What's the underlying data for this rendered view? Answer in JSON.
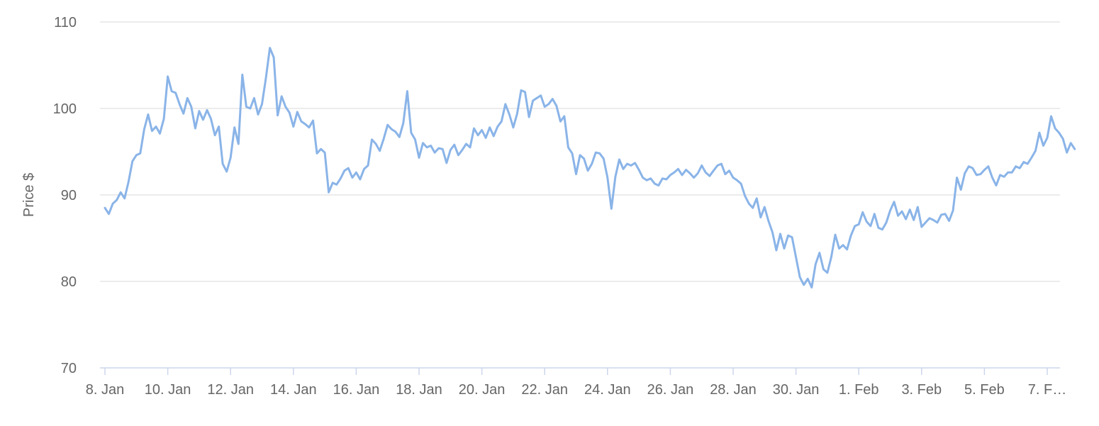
{
  "chart_data": {
    "type": "line",
    "title": "",
    "xlabel": "",
    "ylabel": "Price $",
    "ylim": [
      70,
      110
    ],
    "y_ticks": [
      70,
      80,
      90,
      100,
      110
    ],
    "grid": "horizontal",
    "legend": "none",
    "x_tick_labels": [
      "8. Jan",
      "10. Jan",
      "12. Jan",
      "14. Jan",
      "16. Jan",
      "18. Jan",
      "20. Jan",
      "22. Jan",
      "24. Jan",
      "26. Jan",
      "28. Jan",
      "30. Jan",
      "1. Feb",
      "3. Feb",
      "5. Feb",
      "7. F…"
    ],
    "x_tick_dates": [
      "2017-01-08",
      "2017-01-10",
      "2017-01-12",
      "2017-01-14",
      "2017-01-16",
      "2017-01-18",
      "2017-01-20",
      "2017-01-22",
      "2017-01-24",
      "2017-01-26",
      "2017-01-28",
      "2017-01-30",
      "2017-02-01",
      "2017-02-03",
      "2017-02-05",
      "2017-02-07"
    ],
    "series": [
      {
        "color": "#8ab4e8",
        "points": [
          [
            "2017-01-08T00:00",
            88.5
          ],
          [
            "2017-01-08T03:00",
            87.8
          ],
          [
            "2017-01-08T06:00",
            89.0
          ],
          [
            "2017-01-08T09:00",
            89.4
          ],
          [
            "2017-01-08T12:00",
            90.3
          ],
          [
            "2017-01-08T15:00",
            89.6
          ],
          [
            "2017-01-08T18:00",
            91.5
          ],
          [
            "2017-01-08T21:00",
            93.9
          ],
          [
            "2017-01-09T00:00",
            94.6
          ],
          [
            "2017-01-09T03:00",
            94.8
          ],
          [
            "2017-01-09T06:00",
            97.6
          ],
          [
            "2017-01-09T09:00",
            99.3
          ],
          [
            "2017-01-09T12:00",
            97.4
          ],
          [
            "2017-01-09T15:00",
            97.9
          ],
          [
            "2017-01-09T18:00",
            97.1
          ],
          [
            "2017-01-09T21:00",
            98.8
          ],
          [
            "2017-01-10T00:00",
            103.7
          ],
          [
            "2017-01-10T03:00",
            102.0
          ],
          [
            "2017-01-10T06:00",
            101.8
          ],
          [
            "2017-01-10T09:00",
            100.5
          ],
          [
            "2017-01-10T12:00",
            99.4
          ],
          [
            "2017-01-10T15:00",
            101.2
          ],
          [
            "2017-01-10T18:00",
            100.2
          ],
          [
            "2017-01-10T21:00",
            97.7
          ],
          [
            "2017-01-11T00:00",
            99.7
          ],
          [
            "2017-01-11T03:00",
            98.7
          ],
          [
            "2017-01-11T06:00",
            99.8
          ],
          [
            "2017-01-11T09:00",
            98.8
          ],
          [
            "2017-01-11T12:00",
            96.9
          ],
          [
            "2017-01-11T15:00",
            97.9
          ],
          [
            "2017-01-11T18:00",
            93.6
          ],
          [
            "2017-01-11T21:00",
            92.7
          ],
          [
            "2017-01-12T00:00",
            94.3
          ],
          [
            "2017-01-12T03:00",
            97.8
          ],
          [
            "2017-01-12T06:00",
            95.9
          ],
          [
            "2017-01-12T09:00",
            103.9
          ],
          [
            "2017-01-12T12:00",
            100.2
          ],
          [
            "2017-01-12T15:00",
            100.0
          ],
          [
            "2017-01-12T18:00",
            101.2
          ],
          [
            "2017-01-12T21:00",
            99.3
          ],
          [
            "2017-01-13T00:00",
            100.5
          ],
          [
            "2017-01-13T03:00",
            103.5
          ],
          [
            "2017-01-13T06:00",
            107.0
          ],
          [
            "2017-01-13T09:00",
            105.9
          ],
          [
            "2017-01-13T12:00",
            99.2
          ],
          [
            "2017-01-13T15:00",
            101.4
          ],
          [
            "2017-01-13T18:00",
            100.2
          ],
          [
            "2017-01-13T21:00",
            99.5
          ],
          [
            "2017-01-14T00:00",
            97.9
          ],
          [
            "2017-01-14T03:00",
            99.6
          ],
          [
            "2017-01-14T06:00",
            98.5
          ],
          [
            "2017-01-14T09:00",
            98.2
          ],
          [
            "2017-01-14T12:00",
            97.8
          ],
          [
            "2017-01-14T15:00",
            98.6
          ],
          [
            "2017-01-14T18:00",
            94.8
          ],
          [
            "2017-01-14T21:00",
            95.3
          ],
          [
            "2017-01-15T00:00",
            94.9
          ],
          [
            "2017-01-15T03:00",
            90.3
          ],
          [
            "2017-01-15T06:00",
            91.4
          ],
          [
            "2017-01-15T09:00",
            91.2
          ],
          [
            "2017-01-15T12:00",
            91.9
          ],
          [
            "2017-01-15T15:00",
            92.8
          ],
          [
            "2017-01-15T18:00",
            93.1
          ],
          [
            "2017-01-15T21:00",
            92.0
          ],
          [
            "2017-01-16T00:00",
            92.6
          ],
          [
            "2017-01-16T03:00",
            91.8
          ],
          [
            "2017-01-16T06:00",
            93.0
          ],
          [
            "2017-01-16T09:00",
            93.4
          ],
          [
            "2017-01-16T12:00",
            96.4
          ],
          [
            "2017-01-16T15:00",
            95.9
          ],
          [
            "2017-01-16T18:00",
            95.1
          ],
          [
            "2017-01-16T21:00",
            96.5
          ],
          [
            "2017-01-17T00:00",
            98.1
          ],
          [
            "2017-01-17T03:00",
            97.6
          ],
          [
            "2017-01-17T06:00",
            97.3
          ],
          [
            "2017-01-17T09:00",
            96.7
          ],
          [
            "2017-01-17T12:00",
            98.3
          ],
          [
            "2017-01-17T15:00",
            102.0
          ],
          [
            "2017-01-17T18:00",
            97.2
          ],
          [
            "2017-01-17T21:00",
            96.4
          ],
          [
            "2017-01-18T00:00",
            94.3
          ],
          [
            "2017-01-18T03:00",
            96.0
          ],
          [
            "2017-01-18T06:00",
            95.5
          ],
          [
            "2017-01-18T09:00",
            95.7
          ],
          [
            "2017-01-18T12:00",
            94.9
          ],
          [
            "2017-01-18T15:00",
            95.4
          ],
          [
            "2017-01-18T18:00",
            95.3
          ],
          [
            "2017-01-18T21:00",
            93.7
          ],
          [
            "2017-01-19T00:00",
            95.2
          ],
          [
            "2017-01-19T03:00",
            95.8
          ],
          [
            "2017-01-19T06:00",
            94.6
          ],
          [
            "2017-01-19T09:00",
            95.2
          ],
          [
            "2017-01-19T12:00",
            95.9
          ],
          [
            "2017-01-19T15:00",
            95.5
          ],
          [
            "2017-01-19T18:00",
            97.7
          ],
          [
            "2017-01-19T21:00",
            96.9
          ],
          [
            "2017-01-20T00:00",
            97.5
          ],
          [
            "2017-01-20T03:00",
            96.6
          ],
          [
            "2017-01-20T06:00",
            97.8
          ],
          [
            "2017-01-20T09:00",
            96.8
          ],
          [
            "2017-01-20T12:00",
            97.9
          ],
          [
            "2017-01-20T15:00",
            98.5
          ],
          [
            "2017-01-20T18:00",
            100.5
          ],
          [
            "2017-01-20T21:00",
            99.3
          ],
          [
            "2017-01-21T00:00",
            97.8
          ],
          [
            "2017-01-21T03:00",
            99.4
          ],
          [
            "2017-01-21T06:00",
            102.1
          ],
          [
            "2017-01-21T09:00",
            101.9
          ],
          [
            "2017-01-21T12:00",
            99.0
          ],
          [
            "2017-01-21T15:00",
            100.9
          ],
          [
            "2017-01-21T18:00",
            101.2
          ],
          [
            "2017-01-21T21:00",
            101.5
          ],
          [
            "2017-01-22T00:00",
            100.2
          ],
          [
            "2017-01-22T03:00",
            100.5
          ],
          [
            "2017-01-22T06:00",
            101.1
          ],
          [
            "2017-01-22T09:00",
            100.3
          ],
          [
            "2017-01-22T12:00",
            98.5
          ],
          [
            "2017-01-22T15:00",
            99.1
          ],
          [
            "2017-01-22T18:00",
            95.5
          ],
          [
            "2017-01-22T21:00",
            94.8
          ],
          [
            "2017-01-23T00:00",
            92.4
          ],
          [
            "2017-01-23T03:00",
            94.6
          ],
          [
            "2017-01-23T06:00",
            94.2
          ],
          [
            "2017-01-23T09:00",
            92.8
          ],
          [
            "2017-01-23T12:00",
            93.6
          ],
          [
            "2017-01-23T15:00",
            94.9
          ],
          [
            "2017-01-23T18:00",
            94.8
          ],
          [
            "2017-01-23T21:00",
            94.2
          ],
          [
            "2017-01-24T00:00",
            92.0
          ],
          [
            "2017-01-24T03:00",
            88.4
          ],
          [
            "2017-01-24T06:00",
            92.1
          ],
          [
            "2017-01-24T09:00",
            94.1
          ],
          [
            "2017-01-24T12:00",
            93.0
          ],
          [
            "2017-01-24T15:00",
            93.6
          ],
          [
            "2017-01-24T18:00",
            93.4
          ],
          [
            "2017-01-24T21:00",
            93.7
          ],
          [
            "2017-01-25T00:00",
            92.9
          ],
          [
            "2017-01-25T03:00",
            92.0
          ],
          [
            "2017-01-25T06:00",
            91.7
          ],
          [
            "2017-01-25T09:00",
            91.9
          ],
          [
            "2017-01-25T12:00",
            91.3
          ],
          [
            "2017-01-25T15:00",
            91.1
          ],
          [
            "2017-01-25T18:00",
            91.9
          ],
          [
            "2017-01-25T21:00",
            91.8
          ],
          [
            "2017-01-26T00:00",
            92.3
          ],
          [
            "2017-01-26T03:00",
            92.6
          ],
          [
            "2017-01-26T06:00",
            93.0
          ],
          [
            "2017-01-26T09:00",
            92.3
          ],
          [
            "2017-01-26T12:00",
            92.9
          ],
          [
            "2017-01-26T15:00",
            92.5
          ],
          [
            "2017-01-26T18:00",
            92.0
          ],
          [
            "2017-01-26T21:00",
            92.5
          ],
          [
            "2017-01-27T00:00",
            93.4
          ],
          [
            "2017-01-27T03:00",
            92.6
          ],
          [
            "2017-01-27T06:00",
            92.2
          ],
          [
            "2017-01-27T09:00",
            92.8
          ],
          [
            "2017-01-27T12:00",
            93.4
          ],
          [
            "2017-01-27T15:00",
            93.6
          ],
          [
            "2017-01-27T18:00",
            92.4
          ],
          [
            "2017-01-27T21:00",
            92.8
          ],
          [
            "2017-01-28T00:00",
            92.0
          ],
          [
            "2017-01-28T03:00",
            91.7
          ],
          [
            "2017-01-28T06:00",
            91.3
          ],
          [
            "2017-01-28T09:00",
            89.9
          ],
          [
            "2017-01-28T12:00",
            89.0
          ],
          [
            "2017-01-28T15:00",
            88.5
          ],
          [
            "2017-01-28T18:00",
            89.6
          ],
          [
            "2017-01-28T21:00",
            87.4
          ],
          [
            "2017-01-29T00:00",
            88.6
          ],
          [
            "2017-01-29T03:00",
            87.0
          ],
          [
            "2017-01-29T06:00",
            85.7
          ],
          [
            "2017-01-29T09:00",
            83.6
          ],
          [
            "2017-01-29T12:00",
            85.5
          ],
          [
            "2017-01-29T15:00",
            83.8
          ],
          [
            "2017-01-29T18:00",
            85.3
          ],
          [
            "2017-01-29T21:00",
            85.1
          ],
          [
            "2017-01-30T00:00",
            82.8
          ],
          [
            "2017-01-30T03:00",
            80.5
          ],
          [
            "2017-01-30T06:00",
            79.6
          ],
          [
            "2017-01-30T09:00",
            80.3
          ],
          [
            "2017-01-30T12:00",
            79.3
          ],
          [
            "2017-01-30T15:00",
            82.0
          ],
          [
            "2017-01-30T18:00",
            83.3
          ],
          [
            "2017-01-30T21:00",
            81.4
          ],
          [
            "2017-01-31T00:00",
            81.0
          ],
          [
            "2017-01-31T03:00",
            82.8
          ],
          [
            "2017-01-31T06:00",
            85.4
          ],
          [
            "2017-01-31T09:00",
            83.8
          ],
          [
            "2017-01-31T12:00",
            84.2
          ],
          [
            "2017-01-31T15:00",
            83.7
          ],
          [
            "2017-01-31T18:00",
            85.3
          ],
          [
            "2017-01-31T21:00",
            86.4
          ],
          [
            "2017-02-01T00:00",
            86.6
          ],
          [
            "2017-02-01T03:00",
            88.0
          ],
          [
            "2017-02-01T06:00",
            86.9
          ],
          [
            "2017-02-01T09:00",
            86.4
          ],
          [
            "2017-02-01T12:00",
            87.8
          ],
          [
            "2017-02-01T15:00",
            86.2
          ],
          [
            "2017-02-01T18:00",
            86.0
          ],
          [
            "2017-02-01T21:00",
            86.8
          ],
          [
            "2017-02-02T00:00",
            88.2
          ],
          [
            "2017-02-02T03:00",
            89.2
          ],
          [
            "2017-02-02T06:00",
            87.6
          ],
          [
            "2017-02-02T09:00",
            88.1
          ],
          [
            "2017-02-02T12:00",
            87.2
          ],
          [
            "2017-02-02T15:00",
            88.3
          ],
          [
            "2017-02-02T18:00",
            87.1
          ],
          [
            "2017-02-02T21:00",
            88.6
          ],
          [
            "2017-02-03T00:00",
            86.3
          ],
          [
            "2017-02-03T03:00",
            86.8
          ],
          [
            "2017-02-03T06:00",
            87.3
          ],
          [
            "2017-02-03T09:00",
            87.1
          ],
          [
            "2017-02-03T12:00",
            86.8
          ],
          [
            "2017-02-03T15:00",
            87.7
          ],
          [
            "2017-02-03T18:00",
            87.8
          ],
          [
            "2017-02-03T21:00",
            87.0
          ],
          [
            "2017-02-04T00:00",
            88.2
          ],
          [
            "2017-02-04T03:00",
            92.0
          ],
          [
            "2017-02-04T06:00",
            90.6
          ],
          [
            "2017-02-04T09:00",
            92.5
          ],
          [
            "2017-02-04T12:00",
            93.3
          ],
          [
            "2017-02-04T15:00",
            93.1
          ],
          [
            "2017-02-04T18:00",
            92.3
          ],
          [
            "2017-02-04T21:00",
            92.4
          ],
          [
            "2017-02-05T00:00",
            92.9
          ],
          [
            "2017-02-05T03:00",
            93.3
          ],
          [
            "2017-02-05T06:00",
            92.0
          ],
          [
            "2017-02-05T09:00",
            91.1
          ],
          [
            "2017-02-05T12:00",
            92.3
          ],
          [
            "2017-02-05T15:00",
            92.1
          ],
          [
            "2017-02-05T18:00",
            92.6
          ],
          [
            "2017-02-05T21:00",
            92.6
          ],
          [
            "2017-02-06T00:00",
            93.3
          ],
          [
            "2017-02-06T03:00",
            93.1
          ],
          [
            "2017-02-06T06:00",
            93.8
          ],
          [
            "2017-02-06T09:00",
            93.6
          ],
          [
            "2017-02-06T12:00",
            94.3
          ],
          [
            "2017-02-06T15:00",
            95.1
          ],
          [
            "2017-02-06T18:00",
            97.2
          ],
          [
            "2017-02-06T21:00",
            95.7
          ],
          [
            "2017-02-07T00:00",
            96.6
          ],
          [
            "2017-02-07T03:00",
            99.1
          ],
          [
            "2017-02-07T06:00",
            97.7
          ],
          [
            "2017-02-07T09:00",
            97.2
          ],
          [
            "2017-02-07T12:00",
            96.5
          ],
          [
            "2017-02-07T15:00",
            94.9
          ],
          [
            "2017-02-07T18:00",
            96.0
          ],
          [
            "2017-02-07T21:00",
            95.3
          ]
        ]
      }
    ]
  }
}
